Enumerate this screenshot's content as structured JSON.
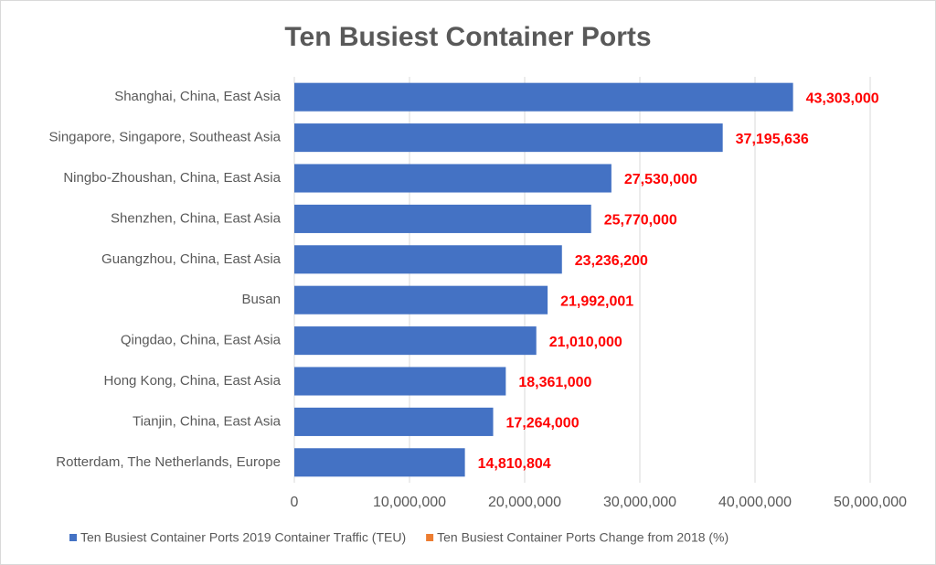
{
  "chart_data": {
    "type": "bar",
    "orientation": "horizontal",
    "title": "Ten Busiest Container Ports",
    "categories": [
      "Shanghai, China, East Asia",
      "Singapore, Singapore, Southeast Asia",
      "Ningbo-Zhoushan, China, East Asia",
      "Shenzhen, China, East Asia",
      "Guangzhou, China, East Asia",
      "Busan",
      "Qingdao, China, East Asia",
      "Hong Kong, China, East Asia",
      "Tianjin, China, East Asia",
      "Rotterdam, The Netherlands, Europe"
    ],
    "series": [
      {
        "name": "Ten Busiest Container Ports 2019 Container Traffic (TEU)",
        "color": "#4472c4",
        "values": [
          43303000,
          37195636,
          27530000,
          25770000,
          23236200,
          21992001,
          21010000,
          18361000,
          17264000,
          14810804
        ],
        "value_labels": [
          "43,303,000",
          "37,195,636",
          "27,530,000",
          "25,770,000",
          "23,236,200",
          "21,992,001",
          "21,010,000",
          "18,361,000",
          "17,264,000",
          "14,810,804"
        ]
      },
      {
        "name": "Ten Busiest Container Ports Change from 2018 (%)",
        "color": "#ed7d31",
        "values": [
          null,
          null,
          null,
          null,
          null,
          null,
          null,
          null,
          null,
          null
        ]
      }
    ],
    "xlim": [
      0,
      50000000
    ],
    "xticks": [
      0,
      {
        "value": 10000000,
        "label": "10,000,000"
      },
      {
        "value": 20000000,
        "label": "20,000,000"
      },
      {
        "value": 30000000,
        "label": "30,000,000"
      },
      {
        "value": 40000000,
        "label": "40,000,000"
      },
      {
        "value": 50000000,
        "label": "50,000,000"
      }
    ],
    "grid": true,
    "legend": "bottom"
  }
}
